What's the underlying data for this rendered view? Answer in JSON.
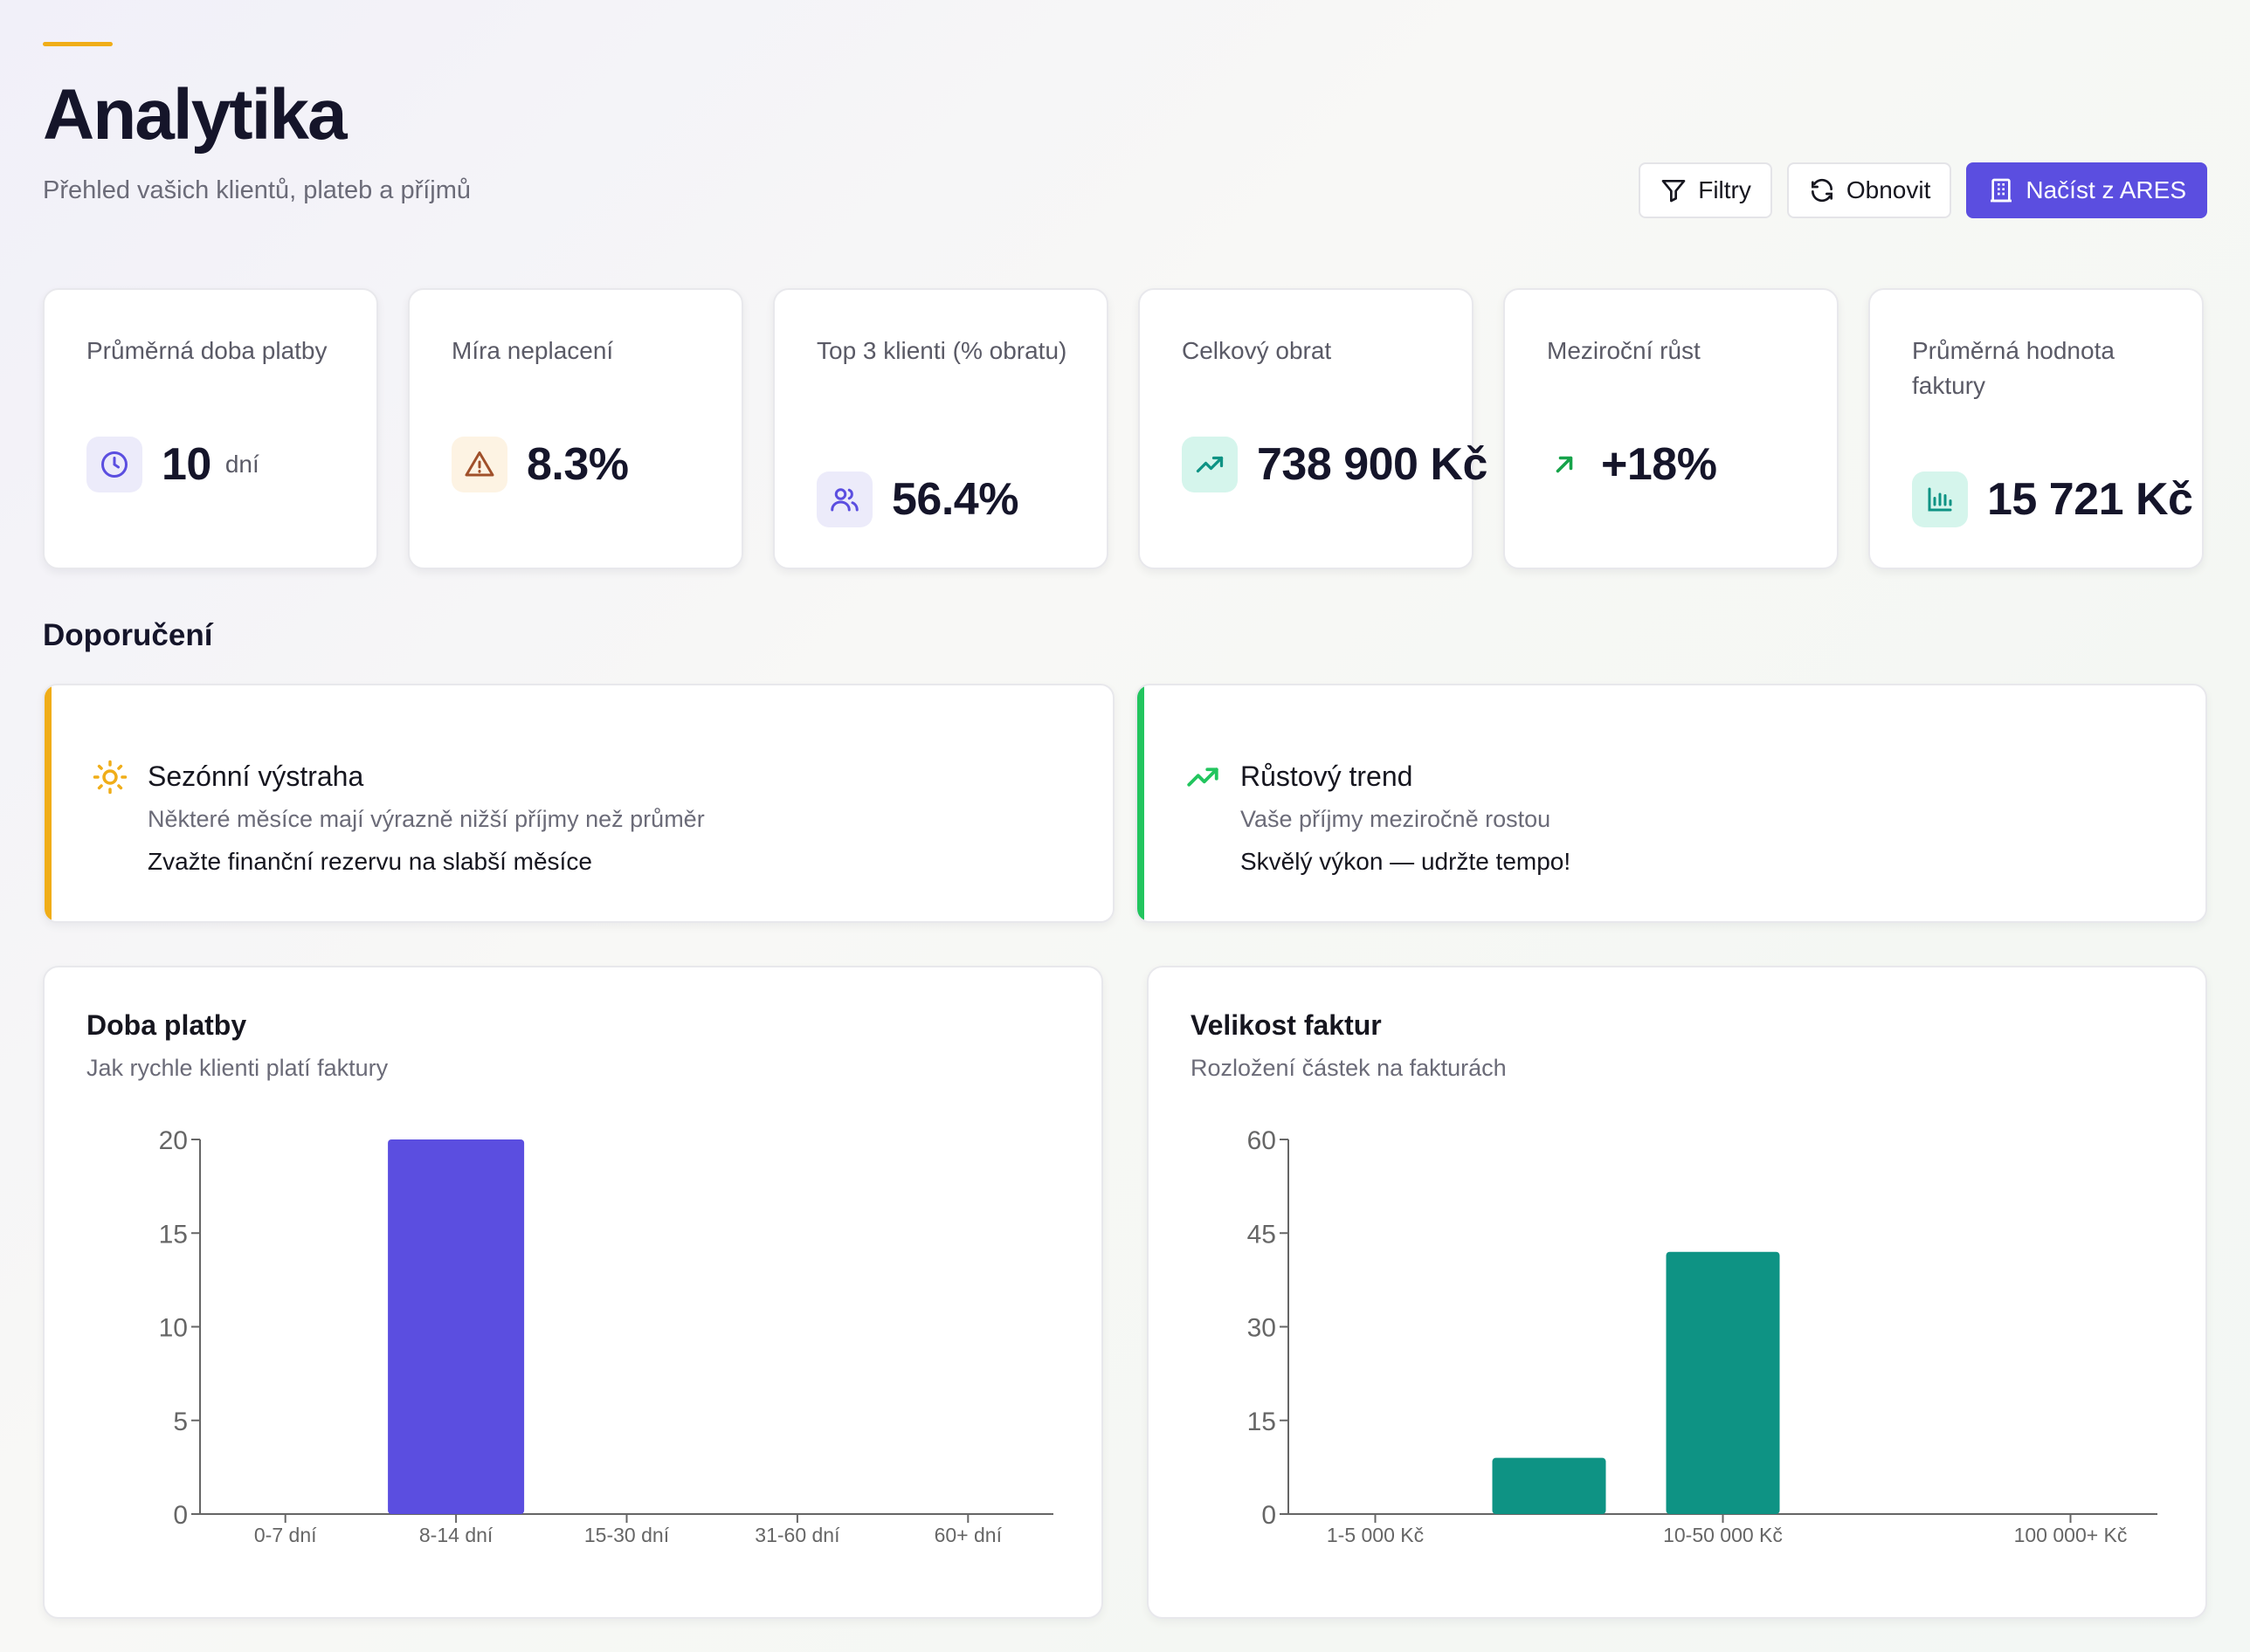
{
  "header": {
    "title": "Analytika",
    "subtitle": "Přehled vašich klientů, plateb a příjmů",
    "buttons": {
      "filters": "Filtry",
      "refresh": "Obnovit",
      "ares": "Načíst z ARES"
    }
  },
  "kpis": [
    {
      "label": "Průměrná doba platby",
      "value": "10",
      "unit": "dní",
      "icon": "clock-icon",
      "icon_bg": "#ecebfa",
      "icon_color": "#5b4ee0"
    },
    {
      "label": "Míra neplacení",
      "value": "8.3%",
      "icon": "warning-icon",
      "icon_bg": "#fdf3e3",
      "icon_color": "#a0502a"
    },
    {
      "label": "Top 3 klienti (% obratu)",
      "value": "56.4%",
      "icon": "users-icon",
      "icon_bg": "#ecebfa",
      "icon_color": "#5b4ee0"
    },
    {
      "label": "Celkový obrat",
      "value": "738 900 Kč",
      "icon": "trending-up-icon",
      "icon_bg": "#d5f5ec",
      "icon_color": "#0e9384"
    },
    {
      "label": "Meziroční růst",
      "value": "+18%",
      "icon": "arrow-up-right-icon",
      "icon_bg": "#ffffff",
      "icon_color": "#16a34a"
    },
    {
      "label": "Průměrná hodnota faktury",
      "value": "15 721 Kč",
      "icon": "bar-chart-icon",
      "icon_bg": "#d5f5ec",
      "icon_color": "#0e9384"
    }
  ],
  "recommendations": {
    "title": "Doporučení",
    "items": [
      {
        "title": "Sezónní výstraha",
        "description": "Některé měsíce mají výrazně nižší příjmy než průměr",
        "note": "Zvažte finanční rezervu na slabší měsíce",
        "icon": "sun-icon",
        "color": "#f0ad18"
      },
      {
        "title": "Růstový trend",
        "description": "Vaše příjmy meziročně rostou",
        "note": "Skvělý výkon — udržte tempo!",
        "icon": "trending-up-icon",
        "color": "#22c55e"
      }
    ]
  },
  "charts": {
    "payment": {
      "title": "Doba platby",
      "subtitle": "Jak rychle klienti platí faktury"
    },
    "invoice": {
      "title": "Velikost faktur",
      "subtitle": "Rozložení částek na fakturách"
    }
  },
  "chart_data": [
    {
      "type": "bar",
      "title": "Doba platby",
      "categories": [
        "0-7 dní",
        "8-14 dní",
        "15-30 dní",
        "31-60 dní",
        "60+ dní"
      ],
      "values": [
        0,
        20,
        0,
        0,
        0
      ],
      "ylim": [
        0,
        20
      ],
      "yticks": [
        0,
        5,
        10,
        15,
        20
      ],
      "color": "#5b4ee0",
      "grid": false
    },
    {
      "type": "bar",
      "title": "Velikost faktur",
      "categories": [
        "1-5 000 Kč",
        "",
        "10-50 000 Kč",
        "",
        "100 000+ Kč"
      ],
      "values": [
        0,
        9,
        42,
        0,
        0
      ],
      "ylim": [
        0,
        60
      ],
      "yticks": [
        0,
        15,
        30,
        45,
        60
      ],
      "color": "#0e9384",
      "grid": false
    }
  ]
}
